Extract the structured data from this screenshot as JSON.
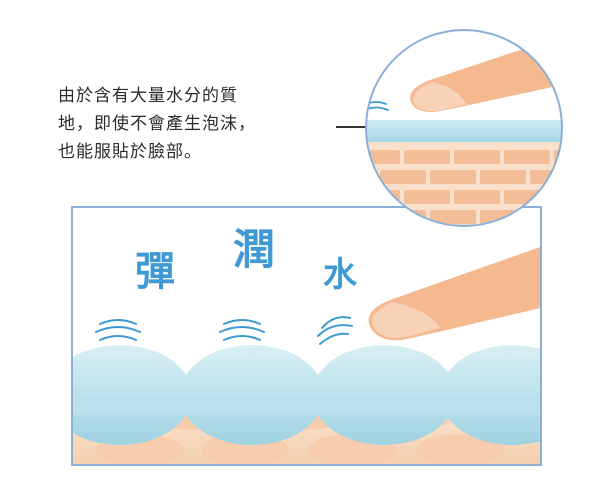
{
  "caption": {
    "line1": "由於含有大量水分的質",
    "line2": "地，即使不會產生泡沫，",
    "line3": "也能服貼於臉部。"
  },
  "illustration": {
    "words": [
      "彈",
      "潤",
      "水"
    ],
    "colors": {
      "frame_blue": "#8ab0d8",
      "word_blue": "#3f9ad3",
      "water_blue": "#b9e0ea",
      "skin": "#f6d3b3",
      "brick": "#f3bd98",
      "finger": "#f4b98e"
    }
  }
}
